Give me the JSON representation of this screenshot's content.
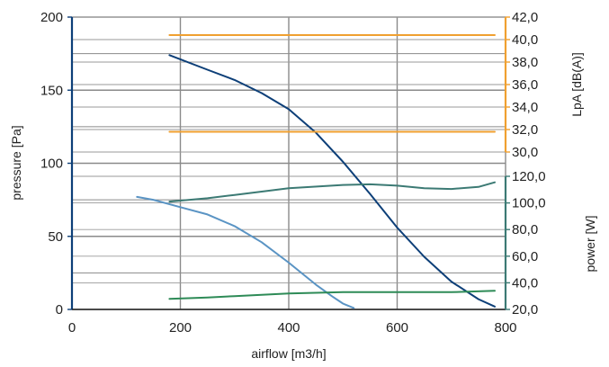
{
  "chart_data": {
    "type": "line",
    "xlabel": "airflow [m3/h]",
    "xlim": [
      0,
      800
    ],
    "x_ticks": [
      "0",
      "200",
      "400",
      "600",
      "800"
    ],
    "left_axis": {
      "label": "pressure [Pa]",
      "ylim": [
        0,
        200
      ],
      "ticks": [
        "0",
        "50",
        "100",
        "150",
        "200"
      ]
    },
    "right_axis_sound": {
      "label": "LpA [dB(A)]",
      "ylim": [
        30,
        42
      ],
      "ticks": [
        "30,0",
        "32,0",
        "34,0",
        "36,0",
        "38,0",
        "40,0",
        "42,0"
      ]
    },
    "right_axis_power": {
      "label": "power [W]",
      "ylim": [
        20,
        120
      ],
      "ticks": [
        "20,0",
        "40,0",
        "60,0",
        "80,0",
        "100,0",
        "120,0"
      ]
    },
    "grid": true,
    "series": [
      {
        "axis": "pressure",
        "color": "#0d3f78",
        "x": [
          180,
          250,
          300,
          350,
          400,
          450,
          500,
          550,
          600,
          650,
          700,
          750,
          780
        ],
        "y": [
          174,
          164,
          157,
          148,
          137,
          121,
          101,
          79,
          56,
          36,
          19,
          7,
          2
        ]
      },
      {
        "axis": "pressure",
        "color": "#5a94c4",
        "x": [
          120,
          150,
          200,
          250,
          300,
          350,
          400,
          450,
          480,
          500,
          520
        ],
        "y": [
          77,
          75,
          70,
          65,
          57,
          46,
          32,
          17,
          9,
          4,
          1
        ]
      },
      {
        "axis": "power",
        "color": "#3c7a74",
        "x": [
          180,
          250,
          300,
          400,
          500,
          550,
          600,
          650,
          700,
          750,
          780
        ],
        "y": [
          101,
          103.5,
          106,
          111,
          113.5,
          114,
          113,
          111,
          110.5,
          112,
          115.5
        ]
      },
      {
        "axis": "power",
        "color": "#2e8b57",
        "x": [
          180,
          250,
          300,
          400,
          500,
          600,
          700,
          780
        ],
        "y": [
          28,
          29,
          30,
          32,
          33,
          33,
          33,
          34
        ]
      },
      {
        "axis": "sound",
        "color": "#f0a030",
        "x": [
          180,
          780
        ],
        "y": [
          40.4,
          40.4
        ]
      },
      {
        "axis": "sound",
        "color": "#f0a030",
        "x": [
          180,
          780
        ],
        "y": [
          31.8,
          31.8
        ]
      }
    ]
  }
}
